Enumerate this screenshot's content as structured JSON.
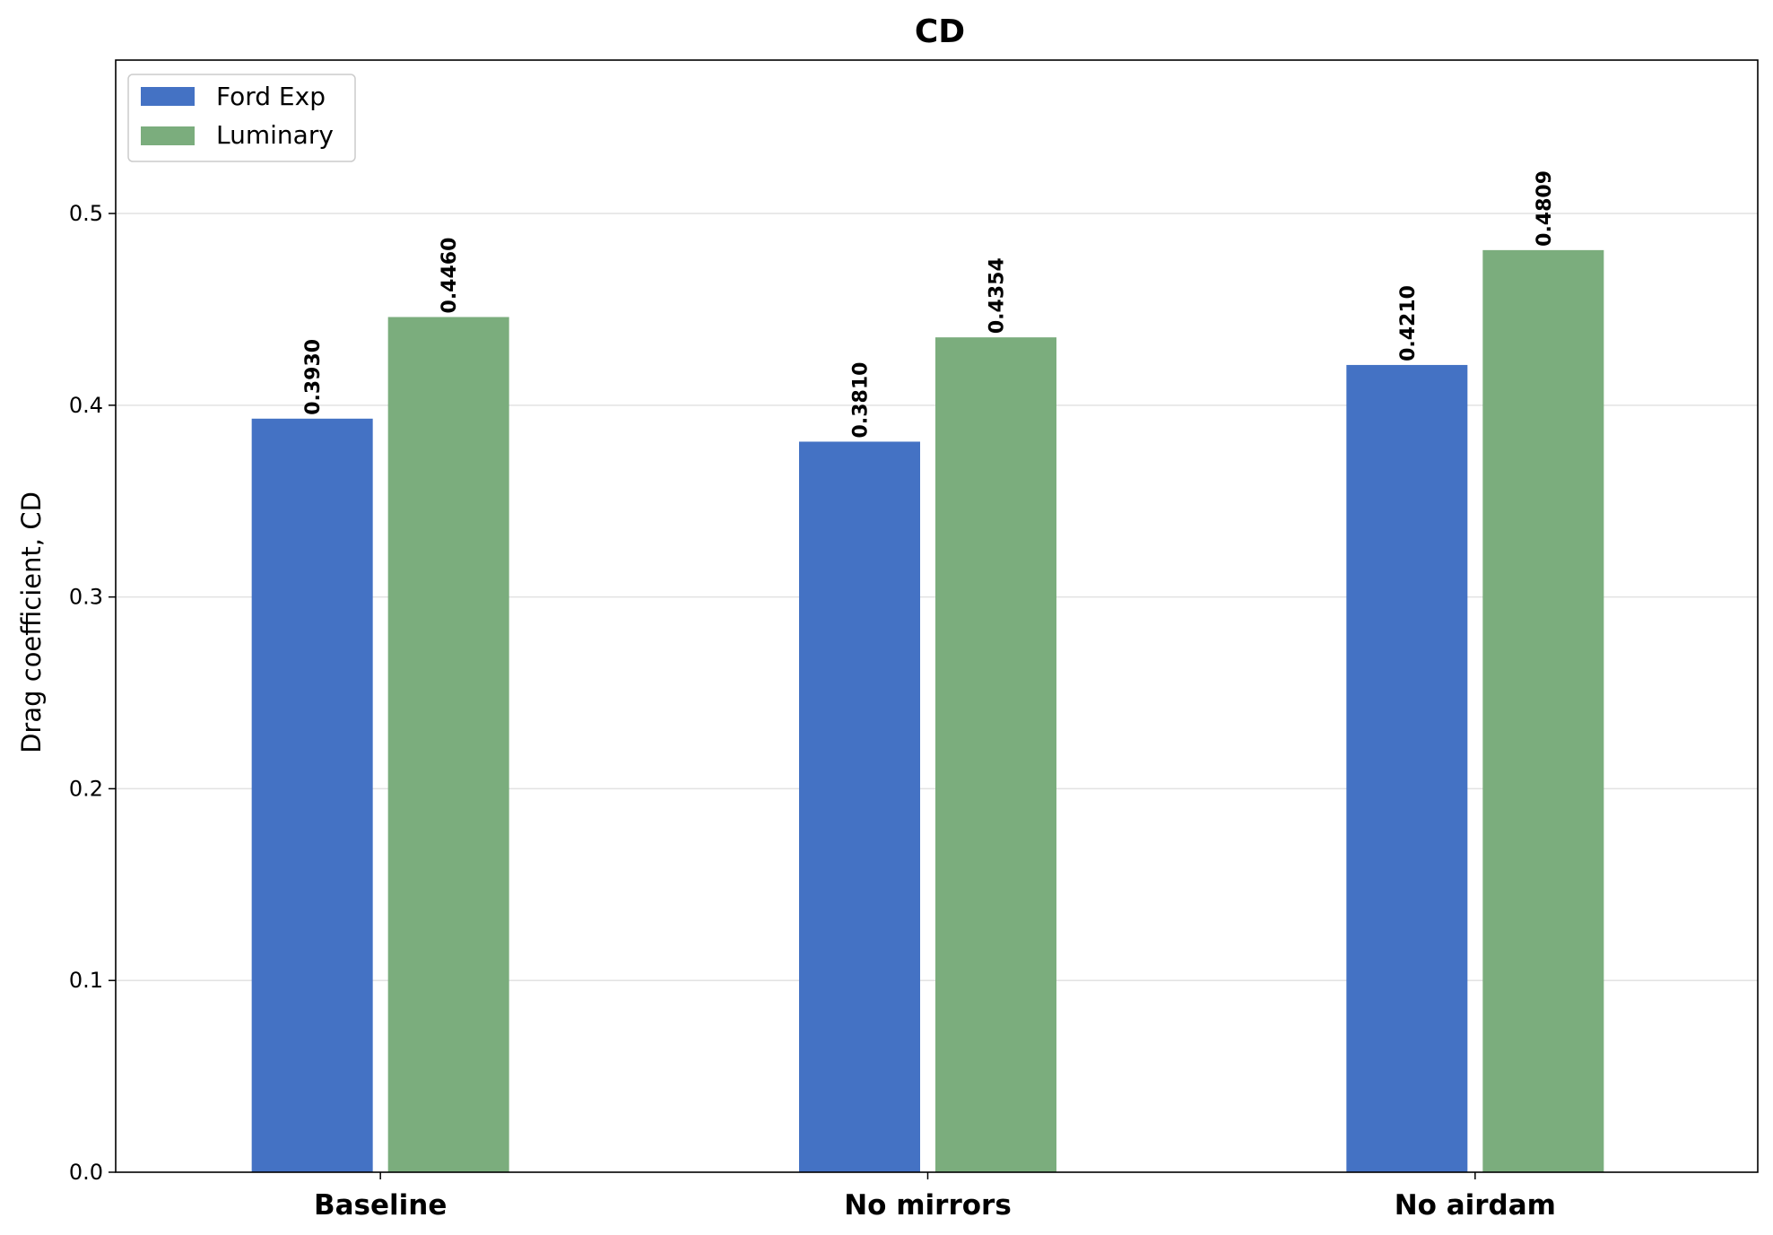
{
  "chart_data": {
    "type": "bar",
    "title": "CD",
    "xlabel": "",
    "ylabel": "Drag coefficient, CD",
    "categories": [
      "Baseline",
      "No mirrors",
      "No airdam"
    ],
    "series": [
      {
        "name": "Ford Exp",
        "color": "#4472c4",
        "values": [
          0.393,
          0.381,
          0.421
        ],
        "labels": [
          "0.3930",
          "0.3810",
          "0.4210"
        ]
      },
      {
        "name": "Luminary",
        "color": "#7bad7d",
        "values": [
          0.446,
          0.4354,
          0.4809
        ],
        "labels": [
          "0.4460",
          "0.4354",
          "0.4809"
        ]
      }
    ],
    "ylim": [
      0,
      0.58
    ],
    "yticks": [
      0.0,
      0.1,
      0.2,
      0.3,
      0.4,
      0.5
    ],
    "ytick_labels": [
      "0.0",
      "0.1",
      "0.2",
      "0.3",
      "0.4",
      "0.5"
    ],
    "grid": "horizontal",
    "legend_position": "top-left"
  }
}
